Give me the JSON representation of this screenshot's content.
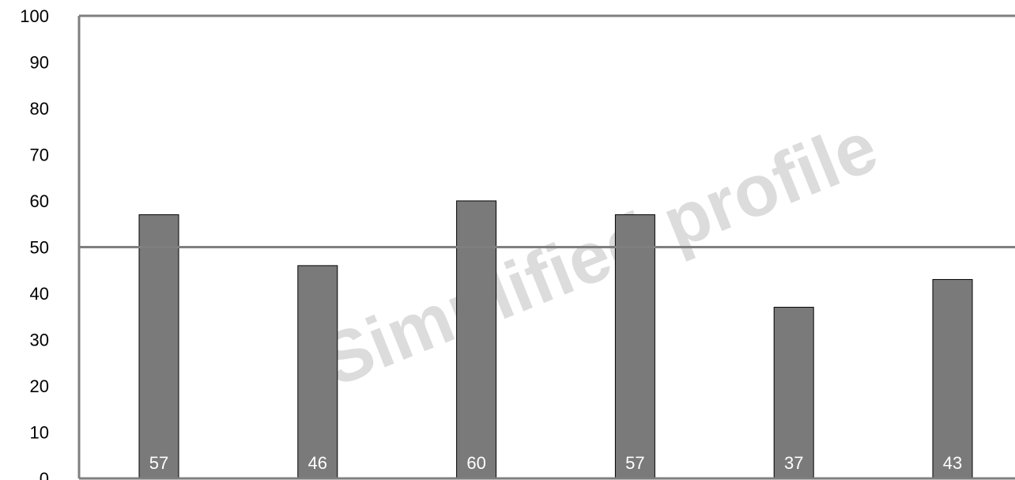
{
  "chart_data": {
    "type": "bar",
    "categories": [
      "",
      "",
      "",
      "",
      "",
      ""
    ],
    "values": [
      57,
      46,
      60,
      57,
      37,
      43
    ],
    "data_labels": [
      "57",
      "46",
      "60",
      "57",
      "37",
      "43"
    ],
    "title": "",
    "xlabel": "",
    "ylabel": "",
    "ylim": [
      0,
      100
    ],
    "yticks": [
      "0",
      "10",
      "20",
      "30",
      "40",
      "50",
      "60",
      "70",
      "80",
      "90",
      "100"
    ],
    "reference_line": 50,
    "grid": false,
    "legend": "none",
    "watermark": "Simplified profile",
    "colors": {
      "bar_fill": "#7a7a7a",
      "bar_stroke": "#000000",
      "axis": "#7f7f7f",
      "reference_line": "#7f7f7f",
      "watermark": "#d9d9d9"
    }
  }
}
